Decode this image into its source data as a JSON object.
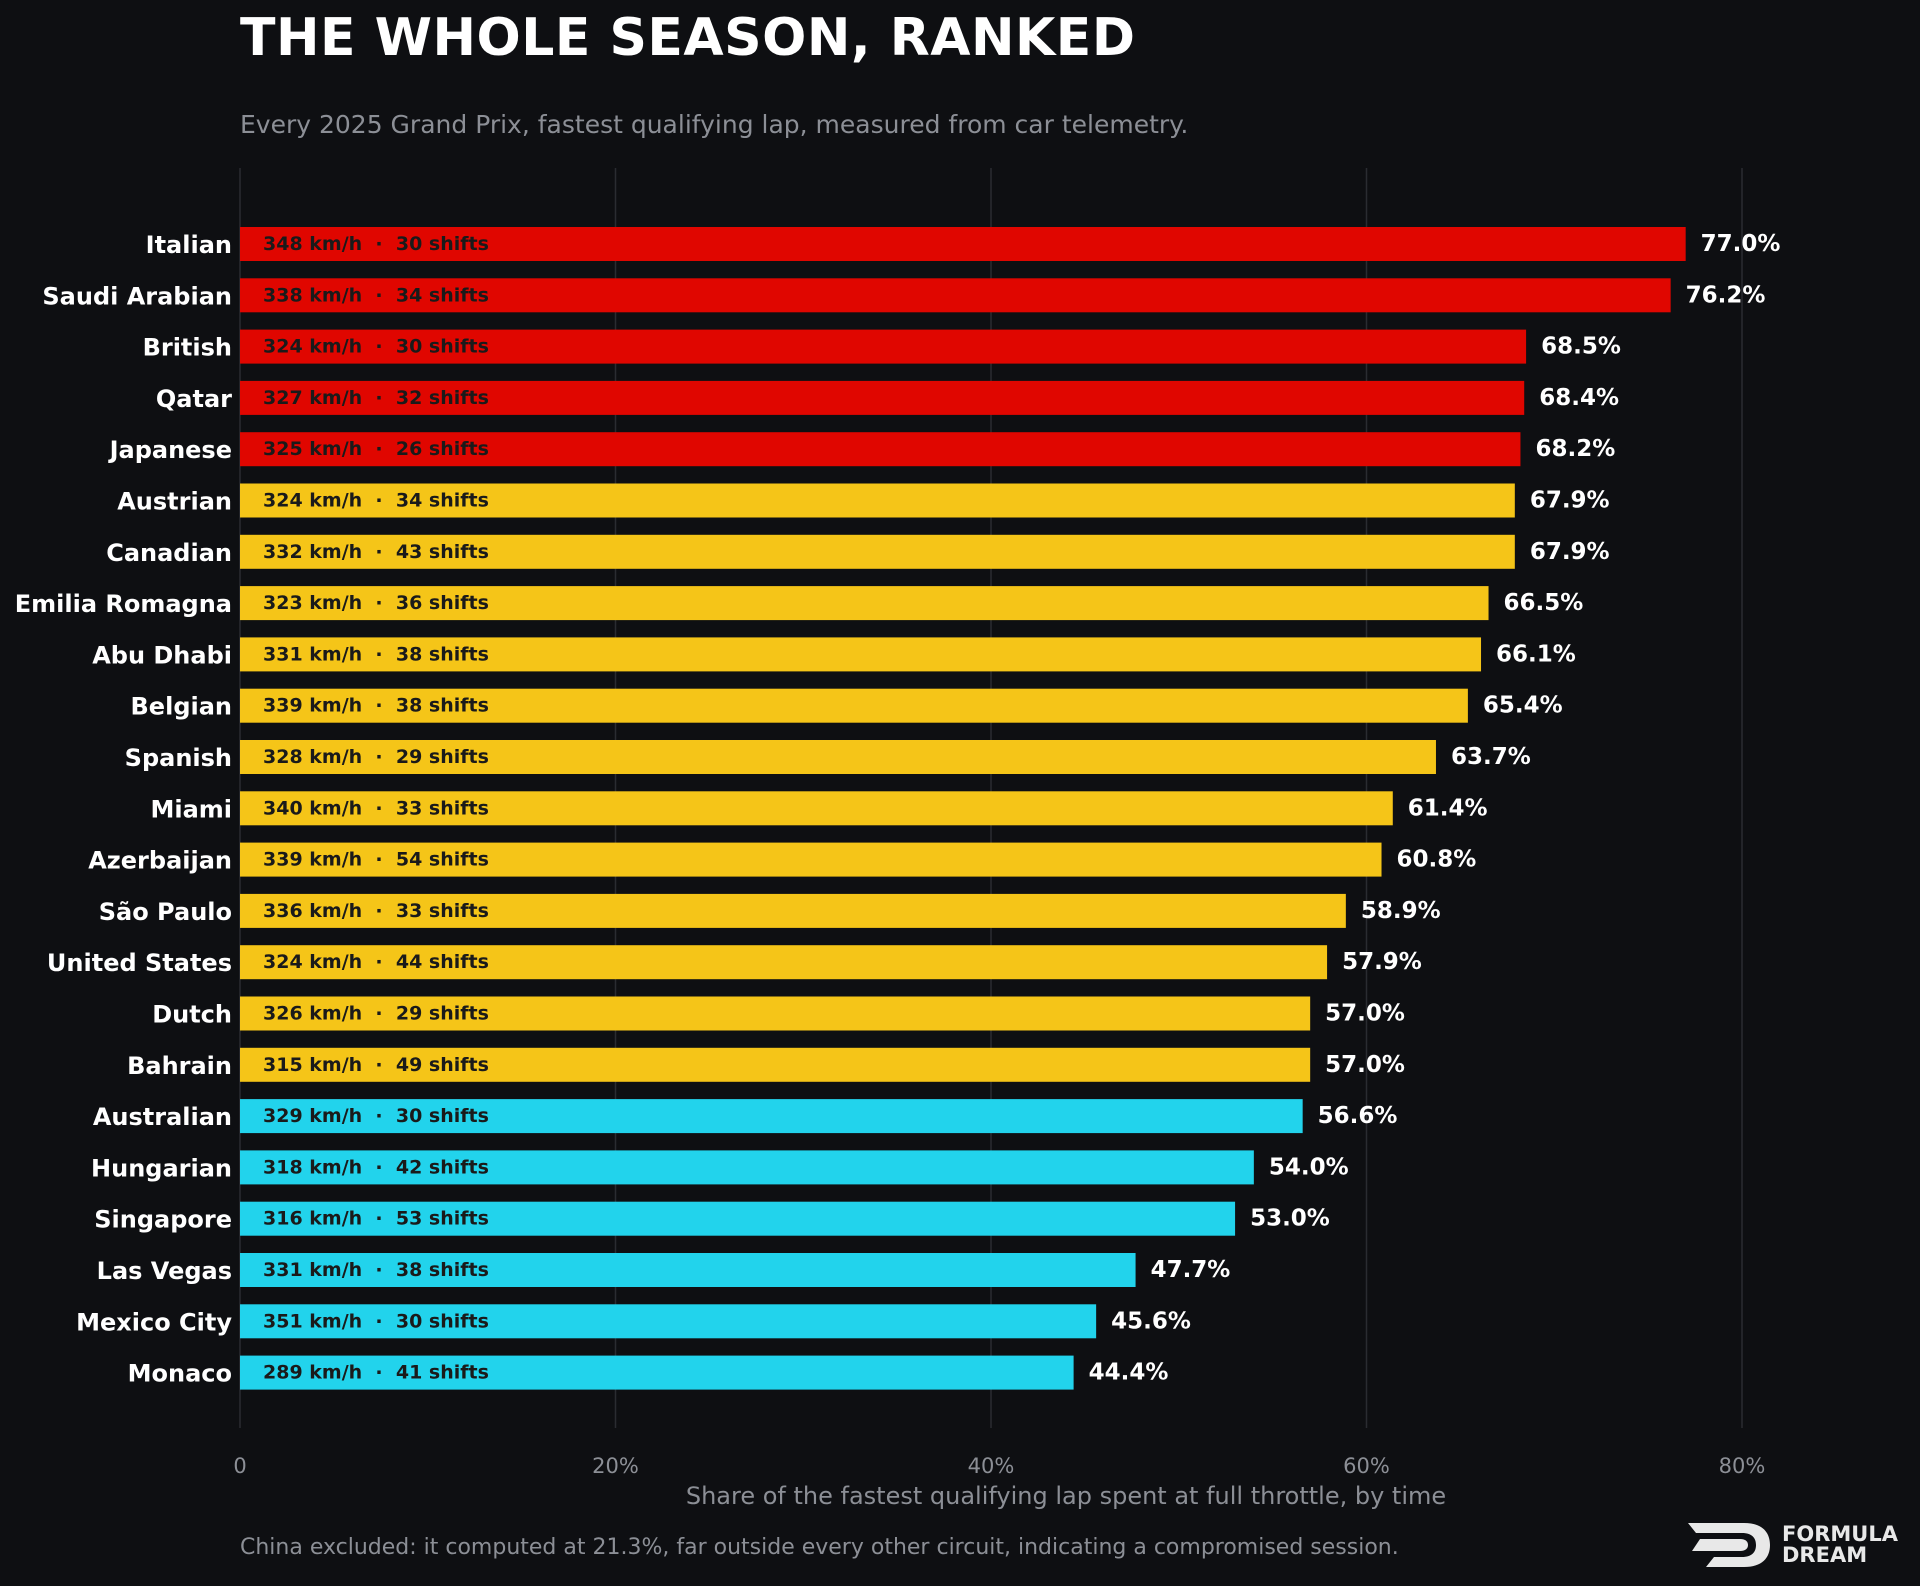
{
  "header": {
    "title": "THE WHOLE SEASON, RANKED",
    "subtitle": "Every 2025 Grand Prix, fastest qualifying lap, measured from car telemetry."
  },
  "footnote": "China excluded: it computed at 21.3%, far outside every other circuit, indicating a compromised session.",
  "logo": {
    "line1": "FORMULA",
    "line2": "DREAM",
    "icon": "formula-dream-logo-icon"
  },
  "colors": {
    "background": "#0e0f12",
    "red": "#e00600",
    "yellow": "#f5c518",
    "cyan": "#22d3ec",
    "grid": "#2a2c31",
    "axis_text": "#8c8f96"
  },
  "chart_data": {
    "type": "bar",
    "orientation": "horizontal",
    "xlabel": "Share of the fastest qualifying lap spent at full throttle, by time",
    "xlim": [
      0,
      80
    ],
    "xticks": [
      0,
      20,
      40,
      60,
      80
    ],
    "xtick_labels": [
      "0",
      "20%",
      "40%",
      "60%",
      "80%"
    ],
    "grid": "vertical",
    "categories": [
      "Italian",
      "Saudi Arabian",
      "British",
      "Qatar",
      "Japanese",
      "Austrian",
      "Canadian",
      "Emilia Romagna",
      "Abu Dhabi",
      "Belgian",
      "Spanish",
      "Miami",
      "Azerbaijan",
      "São Paulo",
      "United States",
      "Dutch",
      "Bahrain",
      "Australian",
      "Hungarian",
      "Singapore",
      "Las Vegas",
      "Mexico City",
      "Monaco"
    ],
    "values": [
      77.0,
      76.2,
      68.5,
      68.4,
      68.2,
      67.9,
      67.9,
      66.5,
      66.1,
      65.4,
      63.7,
      61.4,
      60.8,
      58.9,
      57.9,
      57.0,
      57.0,
      56.6,
      54.0,
      53.0,
      47.7,
      45.6,
      44.4
    ],
    "value_labels": [
      "77.0%",
      "76.2%",
      "68.5%",
      "68.4%",
      "68.2%",
      "67.9%",
      "67.9%",
      "66.5%",
      "66.1%",
      "65.4%",
      "63.7%",
      "61.4%",
      "60.8%",
      "58.9%",
      "57.9%",
      "57.0%",
      "57.0%",
      "56.6%",
      "54.0%",
      "53.0%",
      "47.7%",
      "45.6%",
      "44.4%"
    ],
    "bar_annotations": [
      "348 km/h  ·  30 shifts",
      "338 km/h  ·  34 shifts",
      "324 km/h  ·  30 shifts",
      "327 km/h  ·  32 shifts",
      "325 km/h  ·  26 shifts",
      "324 km/h  ·  34 shifts",
      "332 km/h  ·  43 shifts",
      "323 km/h  ·  36 shifts",
      "331 km/h  ·  38 shifts",
      "339 km/h  ·  38 shifts",
      "328 km/h  ·  29 shifts",
      "340 km/h  ·  33 shifts",
      "339 km/h  ·  54 shifts",
      "336 km/h  ·  33 shifts",
      "324 km/h  ·  44 shifts",
      "326 km/h  ·  29 shifts",
      "315 km/h  ·  49 shifts",
      "329 km/h  ·  30 shifts",
      "318 km/h  ·  42 shifts",
      "316 km/h  ·  53 shifts",
      "331 km/h  ·  38 shifts",
      "351 km/h  ·  30 shifts",
      "289 km/h  ·  41 shifts"
    ],
    "bar_colors": [
      "#e00600",
      "#e00600",
      "#e00600",
      "#e00600",
      "#e00600",
      "#f5c518",
      "#f5c518",
      "#f5c518",
      "#f5c518",
      "#f5c518",
      "#f5c518",
      "#f5c518",
      "#f5c518",
      "#f5c518",
      "#f5c518",
      "#f5c518",
      "#f5c518",
      "#22d3ec",
      "#22d3ec",
      "#22d3ec",
      "#22d3ec",
      "#22d3ec",
      "#22d3ec"
    ]
  }
}
